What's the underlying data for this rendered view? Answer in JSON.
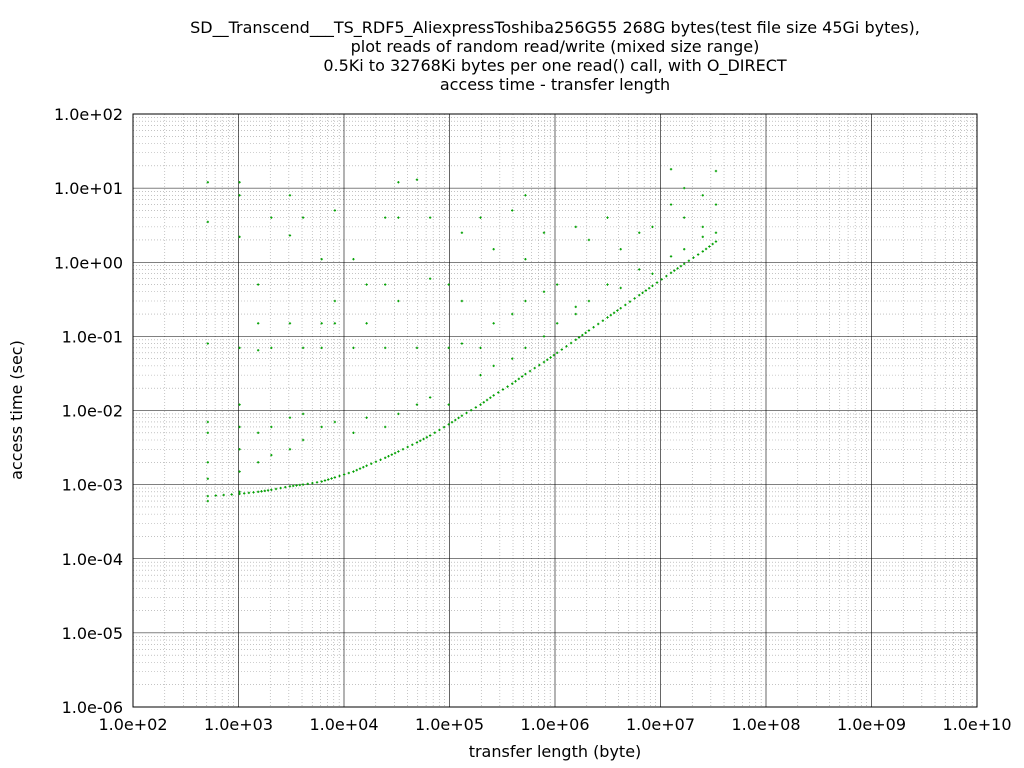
{
  "chart_data": {
    "type": "scatter",
    "title_lines": [
      "SD__Transcend___TS_RDF5_AliexpressToshiba256G55 268G bytes(test file size 45Gi bytes),",
      "plot reads of random read/write (mixed size range)",
      "0.5Ki to 32768Ki bytes per one read() call, with O_DIRECT",
      "access time - transfer length"
    ],
    "xlabel": "transfer length (byte)",
    "ylabel": "access time (sec)",
    "x_scale": "log",
    "y_scale": "log",
    "xlim": [
      100,
      10000000000
    ],
    "ylim": [
      1e-06,
      100
    ],
    "x_ticks": [
      "1.0e+02",
      "1.0e+03",
      "1.0e+04",
      "1.0e+05",
      "1.0e+06",
      "1.0e+07",
      "1.0e+08",
      "1.0e+09",
      "1.0e+10"
    ],
    "y_ticks": [
      "1.0e-06",
      "1.0e-05",
      "1.0e-04",
      "1.0e-03",
      "1.0e-02",
      "1.0e-01",
      "1.0e+00",
      "1.0e+01",
      "1.0e+02"
    ],
    "grid": true,
    "minor_grid": true,
    "marker_color": "#00a000",
    "grid_major_color": "#000000",
    "grid_minor_color": "#a0a0a0",
    "series": [
      {
        "main_trend": [
          [
            512,
            0.0007
          ],
          [
            1024,
            0.00075
          ],
          [
            1536,
            0.0008
          ],
          [
            2048,
            0.00085
          ],
          [
            3072,
            0.00095
          ],
          [
            4096,
            0.001
          ],
          [
            6144,
            0.0011
          ],
          [
            8192,
            0.00125
          ],
          [
            12288,
            0.0015
          ],
          [
            16384,
            0.0018
          ],
          [
            24576,
            0.0023
          ],
          [
            32768,
            0.0028
          ],
          [
            49152,
            0.0037
          ],
          [
            65536,
            0.0046
          ],
          [
            98304,
            0.0065
          ],
          [
            131072,
            0.0085
          ],
          [
            196608,
            0.012
          ],
          [
            262144,
            0.016
          ],
          [
            393216,
            0.023
          ],
          [
            524288,
            0.031
          ],
          [
            786432,
            0.045
          ],
          [
            1048576,
            0.06
          ],
          [
            1572864,
            0.09
          ],
          [
            2097152,
            0.12
          ],
          [
            3145728,
            0.18
          ],
          [
            4194304,
            0.24
          ],
          [
            6291456,
            0.36
          ],
          [
            8388608,
            0.48
          ],
          [
            12582912,
            0.72
          ],
          [
            16777216,
            0.95
          ],
          [
            25165824,
            1.4
          ],
          [
            33554432,
            1.9
          ]
        ],
        "scattered": [
          [
            512,
            12
          ],
          [
            512,
            3.5
          ],
          [
            512,
            0.08
          ],
          [
            512,
            0.007
          ],
          [
            512,
            0.005
          ],
          [
            512,
            0.002
          ],
          [
            512,
            0.0012
          ],
          [
            512,
            0.0006
          ],
          [
            1024,
            12
          ],
          [
            1024,
            8
          ],
          [
            1024,
            2.2
          ],
          [
            1024,
            0.07
          ],
          [
            1024,
            0.012
          ],
          [
            1024,
            0.006
          ],
          [
            1024,
            0.003
          ],
          [
            1024,
            0.0015
          ],
          [
            1024,
            0.0008
          ],
          [
            1536,
            0.5
          ],
          [
            1536,
            0.15
          ],
          [
            1536,
            0.065
          ],
          [
            1536,
            0.005
          ],
          [
            1536,
            0.002
          ],
          [
            2048,
            4
          ],
          [
            2048,
            0.07
          ],
          [
            2048,
            0.006
          ],
          [
            2048,
            0.0025
          ],
          [
            3072,
            8
          ],
          [
            3072,
            2.3
          ],
          [
            3072,
            0.15
          ],
          [
            3072,
            0.008
          ],
          [
            3072,
            0.003
          ],
          [
            4096,
            4
          ],
          [
            4096,
            0.07
          ],
          [
            4096,
            0.009
          ],
          [
            4096,
            0.004
          ],
          [
            6144,
            1.1
          ],
          [
            6144,
            0.15
          ],
          [
            6144,
            0.07
          ],
          [
            6144,
            0.006
          ],
          [
            8192,
            5
          ],
          [
            8192,
            0.3
          ],
          [
            8192,
            0.15
          ],
          [
            8192,
            0.007
          ],
          [
            12288,
            1.1
          ],
          [
            12288,
            0.07
          ],
          [
            12288,
            0.005
          ],
          [
            16384,
            0.5
          ],
          [
            16384,
            0.15
          ],
          [
            16384,
            0.008
          ],
          [
            24576,
            4
          ],
          [
            24576,
            0.5
          ],
          [
            24576,
            0.07
          ],
          [
            24576,
            0.006
          ],
          [
            32768,
            12
          ],
          [
            32768,
            4
          ],
          [
            32768,
            0.3
          ],
          [
            32768,
            0.009
          ],
          [
            49152,
            13
          ],
          [
            49152,
            0.07
          ],
          [
            49152,
            0.012
          ],
          [
            65536,
            4
          ],
          [
            65536,
            0.6
          ],
          [
            65536,
            0.015
          ],
          [
            98304,
            0.5
          ],
          [
            98304,
            0.07
          ],
          [
            98304,
            0.012
          ],
          [
            131072,
            2.5
          ],
          [
            131072,
            0.3
          ],
          [
            131072,
            0.08
          ],
          [
            196608,
            4
          ],
          [
            196608,
            0.07
          ],
          [
            196608,
            0.03
          ],
          [
            262144,
            1.5
          ],
          [
            262144,
            0.15
          ],
          [
            262144,
            0.04
          ],
          [
            393216,
            5
          ],
          [
            393216,
            0.2
          ],
          [
            393216,
            0.05
          ],
          [
            524288,
            8
          ],
          [
            524288,
            1.1
          ],
          [
            524288,
            0.3
          ],
          [
            524288,
            0.07
          ],
          [
            786432,
            2.5
          ],
          [
            786432,
            0.4
          ],
          [
            786432,
            0.1
          ],
          [
            1048576,
            0.5
          ],
          [
            1048576,
            0.15
          ],
          [
            1572864,
            3
          ],
          [
            1572864,
            0.25
          ],
          [
            1572864,
            0.2
          ],
          [
            2097152,
            2
          ],
          [
            2097152,
            0.3
          ],
          [
            3145728,
            4
          ],
          [
            3145728,
            0.5
          ],
          [
            4194304,
            1.5
          ],
          [
            4194304,
            0.45
          ],
          [
            6291456,
            2.5
          ],
          [
            6291456,
            0.8
          ],
          [
            8388608,
            3
          ],
          [
            8388608,
            0.7
          ],
          [
            12582912,
            18
          ],
          [
            12582912,
            6
          ],
          [
            12582912,
            1.2
          ],
          [
            16777216,
            10
          ],
          [
            16777216,
            4
          ],
          [
            16777216,
            1.5
          ],
          [
            25165824,
            8
          ],
          [
            25165824,
            3
          ],
          [
            25165824,
            2.2
          ],
          [
            33554432,
            17
          ],
          [
            33554432,
            6
          ],
          [
            33554432,
            2.5
          ]
        ]
      }
    ]
  }
}
